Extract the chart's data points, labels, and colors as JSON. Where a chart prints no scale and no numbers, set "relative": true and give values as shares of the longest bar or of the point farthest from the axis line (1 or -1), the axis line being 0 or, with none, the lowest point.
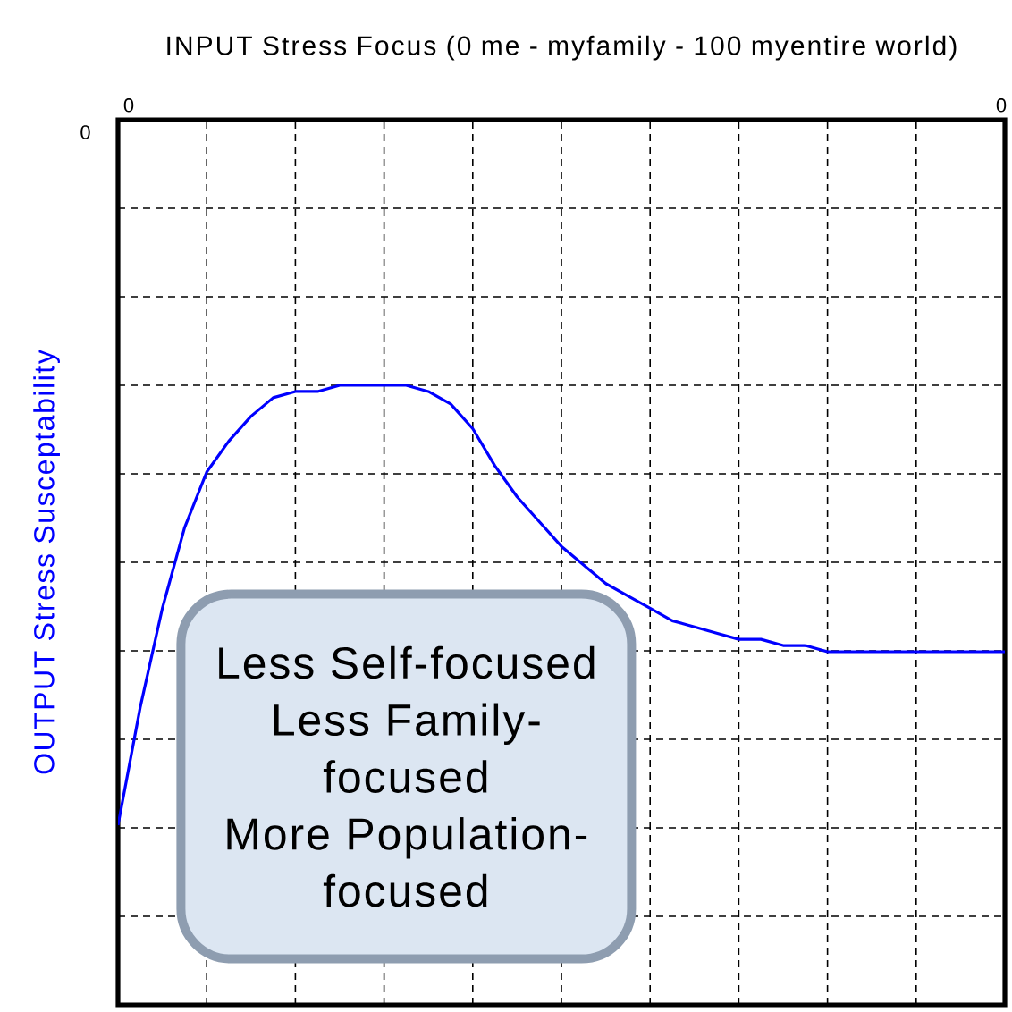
{
  "chart_data": {
    "type": "line",
    "title": "INPUT Stress Focus (0 me - myfamily - 100 myentire world)",
    "ylabel": "OUTPUT Stress Susceptability",
    "categories": [
      null,
      null,
      null,
      null,
      null,
      null,
      null,
      null,
      null,
      null,
      null,
      null,
      null,
      null,
      null,
      null,
      null,
      null,
      null,
      null,
      null,
      null,
      null,
      null,
      null,
      null,
      null,
      null,
      null,
      null,
      null,
      null,
      null,
      null,
      null,
      null,
      null,
      null,
      null,
      null,
      null
    ],
    "series": [
      {
        "color": "#0000ff",
        "values": [
          0.29,
          0.48,
          0.64,
          0.77,
          0.86,
          0.91,
          0.95,
          0.98,
          0.99,
          0.99,
          1,
          1,
          1,
          1,
          0.99,
          0.97,
          0.93,
          0.87,
          0.82,
          0.78,
          0.74,
          0.71,
          0.68,
          0.66,
          0.64,
          0.62,
          0.61,
          0.6,
          0.59,
          0.59,
          0.58,
          0.58,
          0.57,
          0.57,
          0.57,
          0.57,
          0.57,
          0.57,
          0.57,
          0.57,
          0.57
        ]
      }
    ],
    "relative": true,
    "grid": true,
    "annotations": [
      "0",
      "0",
      "0",
      "Less Self-focused",
      "Less Family-focused",
      "More Population-focused"
    ]
  }
}
